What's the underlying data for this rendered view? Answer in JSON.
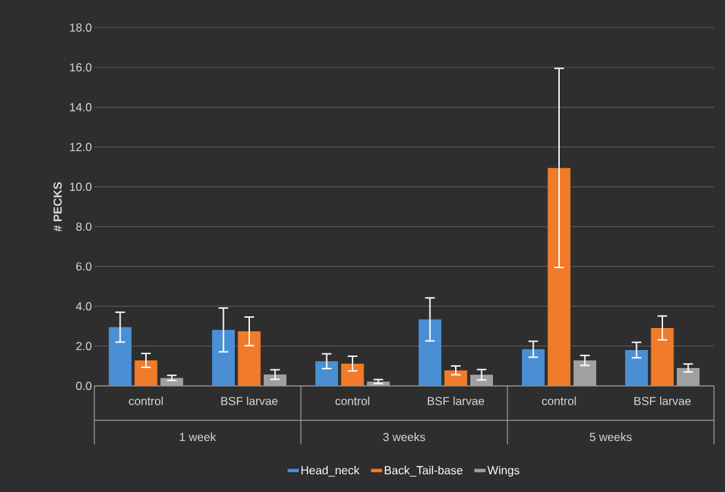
{
  "chart_data": {
    "type": "bar",
    "ylabel": "# PECKS",
    "categories": [
      "control",
      "BSF larvae",
      "control",
      "BSF larvae",
      "control",
      "BSF larvae"
    ],
    "annotations": [
      "1 week",
      "3 weeks",
      "5 weeks"
    ],
    "series": [
      {
        "name": "Head_neck",
        "color": "#4a8fd4",
        "values": [
          2.95,
          2.81,
          1.24,
          3.34,
          1.84,
          1.8
        ],
        "errors": [
          0.75,
          1.1,
          0.37,
          1.08,
          0.4,
          0.39
        ]
      },
      {
        "name": "Back_Tail-base",
        "color": "#f07b2a",
        "values": [
          1.28,
          2.74,
          1.12,
          0.78,
          10.95,
          2.91
        ],
        "errors": [
          0.35,
          0.72,
          0.37,
          0.22,
          5.0,
          0.6
        ]
      },
      {
        "name": "Wings",
        "color": "#a0a0a0",
        "values": [
          0.4,
          0.57,
          0.22,
          0.56,
          1.28,
          0.9
        ],
        "errors": [
          0.13,
          0.24,
          0.1,
          0.26,
          0.25,
          0.2
        ]
      }
    ],
    "ylim": [
      0,
      18
    ],
    "yticks": [
      {
        "value": 0,
        "label": "0.0"
      },
      {
        "value": 2,
        "label": "2.0"
      },
      {
        "value": 4,
        "label": "4.0"
      },
      {
        "value": 6,
        "label": "6.0"
      },
      {
        "value": 8,
        "label": "8.0"
      },
      {
        "value": 10,
        "label": "10.0"
      },
      {
        "value": 12,
        "label": "12.0"
      },
      {
        "value": 14,
        "label": "14.0"
      },
      {
        "value": 16,
        "label": "16.0"
      },
      {
        "value": 18,
        "label": "18.0"
      }
    ],
    "grid": "y",
    "legend": "bottom"
  }
}
